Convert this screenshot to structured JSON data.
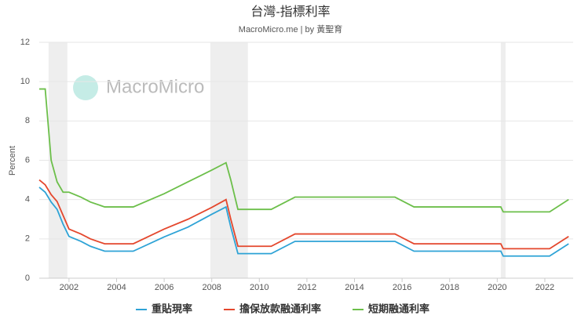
{
  "chart_data": {
    "type": "line",
    "title": "台灣-指標利率",
    "subtitle": "MacroMicro.me | by 黃聖育",
    "watermark": "MacroMicro",
    "y_label": "Percent",
    "x": [
      2000.75,
      2001.0,
      2001.25,
      2001.5,
      2001.75,
      2002.0,
      2002.5,
      2002.9,
      2003.5,
      2004.7,
      2006.0,
      2007.0,
      2008.0,
      2008.6,
      2008.8,
      2009.1,
      2010.5,
      2011.5,
      2015.7,
      2016.5,
      2020.15,
      2020.25,
      2022.2,
      2023.0
    ],
    "series": [
      {
        "name": "重貼現率",
        "color": "#2ea3d6",
        "values": [
          4.625,
          4.375,
          3.875,
          3.5,
          2.75,
          2.125,
          1.875,
          1.625,
          1.375,
          1.375,
          2.1,
          2.6,
          3.25,
          3.625,
          2.6,
          1.25,
          1.25,
          1.875,
          1.875,
          1.375,
          1.375,
          1.125,
          1.125,
          1.75
        ]
      },
      {
        "name": "擔保放款融通利率",
        "color": "#e4472d",
        "values": [
          5.0,
          4.75,
          4.25,
          3.9,
          3.2,
          2.5,
          2.25,
          2.0,
          1.75,
          1.75,
          2.5,
          3.0,
          3.6,
          4.0,
          3.0,
          1.625,
          1.625,
          2.25,
          2.25,
          1.75,
          1.75,
          1.5,
          1.5,
          2.125
        ]
      },
      {
        "name": "短期融通利率",
        "color": "#6cbf4a",
        "values": [
          9.625,
          9.625,
          6.0,
          4.9,
          4.375,
          4.375,
          4.125,
          3.875,
          3.625,
          3.625,
          4.3,
          4.9,
          5.5,
          5.875,
          5.0,
          3.5,
          3.5,
          4.125,
          4.125,
          3.625,
          3.625,
          3.375,
          3.375,
          4.0
        ]
      }
    ],
    "shaded_ranges": [
      [
        2001.14,
        2001.93
      ],
      [
        2007.94,
        2009.52
      ],
      [
        2020.15,
        2020.35
      ]
    ],
    "xlim": [
      2000.75,
      2023.19
    ],
    "xticks": [
      2002,
      2004,
      2006,
      2008,
      2010,
      2012,
      2014,
      2016,
      2018,
      2020,
      2022
    ],
    "ylim": [
      0,
      12
    ],
    "yticks": [
      0,
      2,
      4,
      6,
      8,
      10,
      12
    ],
    "grid": true,
    "legend": "bottom"
  }
}
